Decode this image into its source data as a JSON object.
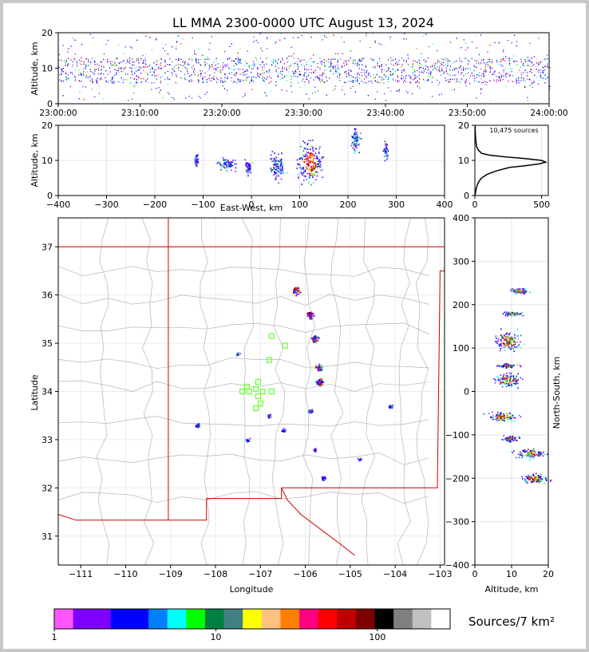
{
  "title": "LL MMA 2300-0000 UTC August 13, 2024",
  "colors": {
    "colorbar": [
      "#ff55ff",
      "#8000ff",
      "#7f00ff",
      "#0000ff",
      "#0000ff",
      "#0080ff",
      "#00ffff",
      "#00ff00",
      "#008040",
      "#408080",
      "#ffff00",
      "#ffc080",
      "#ff8000",
      "#ff0080",
      "#ff0000",
      "#c00000",
      "#800000",
      "#000000",
      "#808080",
      "#c0c0c0",
      "#ffffff"
    ],
    "state_border": "#d00000",
    "county_border": "#b4b4b4",
    "station": "#66ff33"
  },
  "chart_data": [
    {
      "type": "scatter",
      "panel": "altitude-time",
      "ylabel": "Altitude, km",
      "ylim": [
        0,
        20
      ],
      "yticks": [
        "0",
        "10",
        "20"
      ],
      "xticks": [
        "23:00:00",
        "23:10:00",
        "23:20:00",
        "23:30:00",
        "23:40:00",
        "23:50:00",
        "24:00:00"
      ],
      "xlim_minutes": [
        0,
        60
      ],
      "core_altitude_km": [
        6,
        13
      ]
    },
    {
      "type": "scatter",
      "panel": "east-west-altitude",
      "xlabel": "East-West, km",
      "ylabel": "Altitude, km",
      "xlim": [
        -400,
        400
      ],
      "ylim": [
        0,
        20
      ],
      "xticks": [
        "−400",
        "−300",
        "−200",
        "−100",
        "0",
        "100",
        "200",
        "300",
        "400"
      ],
      "yticks": [
        "0",
        "10",
        "20"
      ],
      "clusters": [
        {
          "x": [
            -120,
            -110
          ],
          "y": [
            8,
            12
          ]
        },
        {
          "x": [
            -70,
            -30
          ],
          "y": [
            7,
            11
          ]
        },
        {
          "x": [
            -15,
            0
          ],
          "y": [
            6,
            11
          ]
        },
        {
          "x": [
            35,
            70
          ],
          "y": [
            4,
            13
          ]
        },
        {
          "x": [
            90,
            150
          ],
          "y": [
            3,
            16
          ]
        },
        {
          "x": [
            205,
            225
          ],
          "y": [
            12,
            20
          ]
        },
        {
          "x": [
            272,
            282
          ],
          "y": [
            10,
            16
          ]
        }
      ]
    },
    {
      "type": "line",
      "panel": "altitude-histogram",
      "annotation": "10,475 sources",
      "xlim": [
        0,
        550
      ],
      "ylim": [
        0,
        20
      ],
      "xticks": [
        "0",
        "500"
      ],
      "yticks": [
        "0",
        "10",
        "20"
      ],
      "x": [
        2,
        5,
        10,
        18,
        30,
        50,
        90,
        160,
        260,
        380,
        480,
        530,
        500,
        380,
        230,
        110,
        50,
        25,
        12,
        6,
        3,
        2
      ],
      "y": [
        0,
        1,
        2,
        3,
        4,
        5,
        6,
        7,
        8,
        8.5,
        9,
        9.5,
        10,
        10.5,
        11,
        11.5,
        12,
        13,
        14,
        16,
        18,
        20
      ]
    },
    {
      "type": "scatter",
      "panel": "plan-view",
      "xlabel": "Longitude",
      "ylabel": "Latitude",
      "xlim": [
        -111.5,
        -102.9
      ],
      "ylim": [
        30.4,
        37.6
      ],
      "xticks": [
        "−111",
        "−110",
        "−109",
        "−108",
        "−107",
        "−106",
        "−105",
        "−104",
        "−103"
      ],
      "yticks": [
        "31",
        "32",
        "33",
        "34",
        "35",
        "36",
        "37"
      ],
      "clusters": [
        {
          "lon": -106.2,
          "lat": 36.1
        },
        {
          "lon": -105.9,
          "lat": 35.6
        },
        {
          "lon": -105.8,
          "lat": 35.1
        },
        {
          "lon": -105.7,
          "lat": 34.5
        },
        {
          "lon": -105.7,
          "lat": 34.2
        },
        {
          "lon": -107.5,
          "lat": 34.8
        },
        {
          "lon": -106.8,
          "lat": 33.5
        },
        {
          "lon": -107.3,
          "lat": 33.0
        },
        {
          "lon": -108.4,
          "lat": 33.3
        },
        {
          "lon": -105.8,
          "lat": 32.8
        },
        {
          "lon": -104.8,
          "lat": 32.6
        },
        {
          "lon": -105.6,
          "lat": 32.2
        },
        {
          "lon": -105.9,
          "lat": 33.6
        },
        {
          "lon": -104.1,
          "lat": 33.7
        },
        {
          "lon": -106.5,
          "lat": 33.2
        }
      ],
      "stations": [
        {
          "lon": -106.75,
          "lat": 35.15
        },
        {
          "lon": -106.45,
          "lat": 34.95
        },
        {
          "lon": -106.8,
          "lat": 34.65
        },
        {
          "lon": -107.05,
          "lat": 34.2
        },
        {
          "lon": -107.3,
          "lat": 34.1
        },
        {
          "lon": -107.4,
          "lat": 34.0
        },
        {
          "lon": -107.25,
          "lat": 34.0
        },
        {
          "lon": -107.1,
          "lat": 34.05
        },
        {
          "lon": -106.95,
          "lat": 34.0
        },
        {
          "lon": -107.05,
          "lat": 33.9
        },
        {
          "lon": -107.0,
          "lat": 33.75
        },
        {
          "lon": -107.1,
          "lat": 33.65
        },
        {
          "lon": -106.75,
          "lat": 34.0
        }
      ]
    },
    {
      "type": "scatter",
      "panel": "altitude-north-south",
      "xlabel": "Altitude, km",
      "ylabel": "North-South, km",
      "xlim": [
        0,
        20
      ],
      "ylim": [
        -400,
        400
      ],
      "xticks": [
        "0",
        "10",
        "20"
      ],
      "yticks": [
        "−400",
        "−300",
        "−200",
        "−100",
        "0",
        "100",
        "200",
        "300",
        "400"
      ],
      "clusters": [
        {
          "alt": [
            9,
            15
          ],
          "ns": [
            225,
            240
          ]
        },
        {
          "alt": [
            7,
            13
          ],
          "ns": [
            175,
            185
          ]
        },
        {
          "alt": [
            5,
            13
          ],
          "ns": [
            90,
            145
          ]
        },
        {
          "alt": [
            6,
            12
          ],
          "ns": [
            55,
            65
          ]
        },
        {
          "alt": [
            5,
            13
          ],
          "ns": [
            10,
            45
          ]
        },
        {
          "alt": [
            3,
            12
          ],
          "ns": [
            -70,
            -45
          ]
        },
        {
          "alt": [
            7,
            12
          ],
          "ns": [
            -115,
            -100
          ]
        },
        {
          "alt": [
            10,
            20
          ],
          "ns": [
            -155,
            -130
          ]
        },
        {
          "alt": [
            12,
            20
          ],
          "ns": [
            -215,
            -185
          ]
        }
      ]
    },
    {
      "type": "heatmap",
      "panel": "colorbar",
      "label": "Sources/7 km²",
      "ticks": [
        "1",
        "10",
        "100"
      ]
    }
  ]
}
